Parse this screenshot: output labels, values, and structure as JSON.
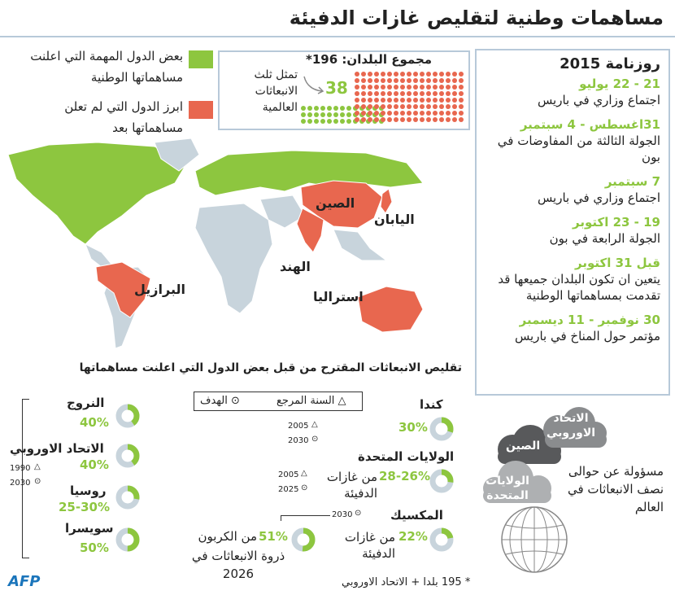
{
  "title": "مساهمات وطنية لتقليص غازات الدفيئة",
  "legend": {
    "announced": "بعض الدول المهمة التي اعلنت مساهماتها الوطنية",
    "not_announced": "ابرز الدول التي لم تعلن مساهماتها بعد",
    "announced_color": "#8dc63f",
    "not_announced_color": "#e8674f"
  },
  "total": {
    "label": "مجموع البلدان: 196*",
    "count": "38",
    "note": "تمثل ثلث الانبعاثات العالمية"
  },
  "agenda": {
    "title": "روزنامة 2015",
    "items": [
      {
        "date": "21 - 22 يوليو",
        "desc": "اجتماع وزاري في باريس"
      },
      {
        "date": "31اغسطس - 4 سبتمبر",
        "desc": "الجولة الثالثة من المفاوضات في بون"
      },
      {
        "date": "7 سبتمبر",
        "desc": "اجتماع وزاري في باريس"
      },
      {
        "date": "19 - 23 اكتوبر",
        "desc": "الجولة الرابعة في بون"
      },
      {
        "date": "قبل 31 اكتوبر",
        "desc": "يتعين ان تكون البلدان جميعها قد تقدمت بمساهماتها الوطنية"
      },
      {
        "date": "30 نوفمبر - 11 ديسمبر",
        "desc": "مؤتمر حول المناخ في باريس"
      }
    ]
  },
  "map": {
    "china": "الصين",
    "japan": "اليابان",
    "india": "الهند",
    "brazil": "البرازيل",
    "australia": "استراليا"
  },
  "reductions": {
    "heading": "تقليص الانبعاثات المقترح من قبل بعض الدول التي اعلنت مساهماتها",
    "key_ref": "△ السنة المرجع",
    "key_target": "⊙ الهدف",
    "countries": [
      {
        "name": "كندا",
        "value": "30%",
        "ref": "2005",
        "target": "2030",
        "fraction": 0.3
      },
      {
        "name": "الولايات المتحدة",
        "value": "28-26%",
        "unit": "من غازات الدفيئة",
        "ref": "2005",
        "target": "2025",
        "fraction": 0.27
      },
      {
        "name": "المكسيك",
        "value": "22%",
        "unit": "من غازات الدفيئة",
        "target": "2030",
        "fraction": 0.22
      },
      {
        "name": "",
        "value": "51%",
        "unit": "من الكربون",
        "extra": "ذروة الانبعاثات في 2026",
        "fraction": 0.51
      },
      {
        "name": "النروج",
        "value": "40%",
        "fraction": 0.4
      },
      {
        "name": "الاتحاد الاوروبي",
        "value": "40%",
        "fraction": 0.4
      },
      {
        "name": "روسيا",
        "value": "25-30%",
        "fraction": 0.28
      },
      {
        "name": "سويسرا",
        "value": "50%",
        "fraction": 0.5
      }
    ],
    "ref_year_left": "1990",
    "target_year_left": "2030"
  },
  "clouds": {
    "eu": "الاتحاد الاوروبي",
    "china": "الصين",
    "us": "الولايات المتحدة",
    "note": "مسؤولة عن حوالى نصف الانبعاثات في العالم"
  },
  "footnote": "* 195 بلدا + الاتحاد الاوروبي",
  "logo": "AFP"
}
